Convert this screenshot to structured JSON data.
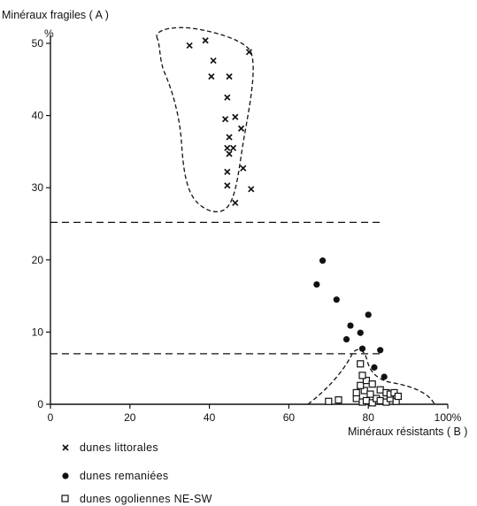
{
  "chart_data": {
    "type": "scatter",
    "title": "",
    "ylabel": "Minéraux fragiles ( A )",
    "ylabel_unit": "%",
    "xlabel": "Minéraux résistants ( B )",
    "xlim": [
      0,
      100
    ],
    "ylim": [
      0,
      52
    ],
    "x_ticks": [
      0,
      20,
      40,
      60,
      80,
      100
    ],
    "x_tick_labels": [
      "0",
      "20",
      "40",
      "60",
      "80",
      "100%"
    ],
    "y_ticks": [
      0,
      10,
      20,
      30,
      40,
      50
    ],
    "y_tick_labels": [
      "0",
      "10",
      "20",
      "30",
      "40",
      "50"
    ],
    "grid": false,
    "legend_position": "bottom-left",
    "reference_lines_y": [
      25.2,
      7
    ],
    "series": [
      {
        "name": "dunes littorales",
        "marker": "cross",
        "points": [
          [
            35,
            49.7
          ],
          [
            39,
            50.4
          ],
          [
            50,
            48.8
          ],
          [
            41,
            47.6
          ],
          [
            40.5,
            45.4
          ],
          [
            45,
            45.4
          ],
          [
            44.5,
            42.5
          ],
          [
            44,
            39.5
          ],
          [
            46.5,
            39.8
          ],
          [
            48,
            38.2
          ],
          [
            45,
            37
          ],
          [
            44.5,
            35.5
          ],
          [
            46,
            35.5
          ],
          [
            45,
            34.7
          ],
          [
            48.5,
            32.7
          ],
          [
            44.5,
            32.2
          ],
          [
            44.5,
            30.3
          ],
          [
            50.5,
            29.8
          ],
          [
            46.5,
            27.9
          ]
        ]
      },
      {
        "name": "dunes remaniées",
        "marker": "dot",
        "points": [
          [
            68.5,
            19.9
          ],
          [
            67,
            16.6
          ],
          [
            72,
            14.5
          ],
          [
            80,
            12.4
          ],
          [
            75.5,
            10.9
          ],
          [
            78,
            9.9
          ],
          [
            74.5,
            9
          ],
          [
            78.5,
            7.7
          ],
          [
            83,
            7.5
          ],
          [
            81.5,
            5.1
          ],
          [
            84,
            3.8
          ]
        ]
      },
      {
        "name": "dunes ogoliennes NE-SW",
        "marker": "square",
        "points": [
          [
            70,
            0.4
          ],
          [
            72.5,
            0.6
          ],
          [
            77,
            0.8
          ],
          [
            78.5,
            0.3
          ],
          [
            79.5,
            0.5
          ],
          [
            81,
            0.2
          ],
          [
            82,
            0.8
          ],
          [
            83,
            0.5
          ],
          [
            84.5,
            0.3
          ],
          [
            85.5,
            0.8
          ],
          [
            87,
            0.4
          ],
          [
            77,
            1.6
          ],
          [
            79,
            1.9
          ],
          [
            80.5,
            1.4
          ],
          [
            83,
            2
          ],
          [
            84.5,
            1.6
          ],
          [
            85.5,
            1.4
          ],
          [
            86.5,
            1.6
          ],
          [
            87.5,
            1.1
          ],
          [
            78,
            2.6
          ],
          [
            79.5,
            3.3
          ],
          [
            81,
            2.8
          ],
          [
            78.5,
            4
          ],
          [
            78,
            5.6
          ]
        ]
      }
    ]
  }
}
